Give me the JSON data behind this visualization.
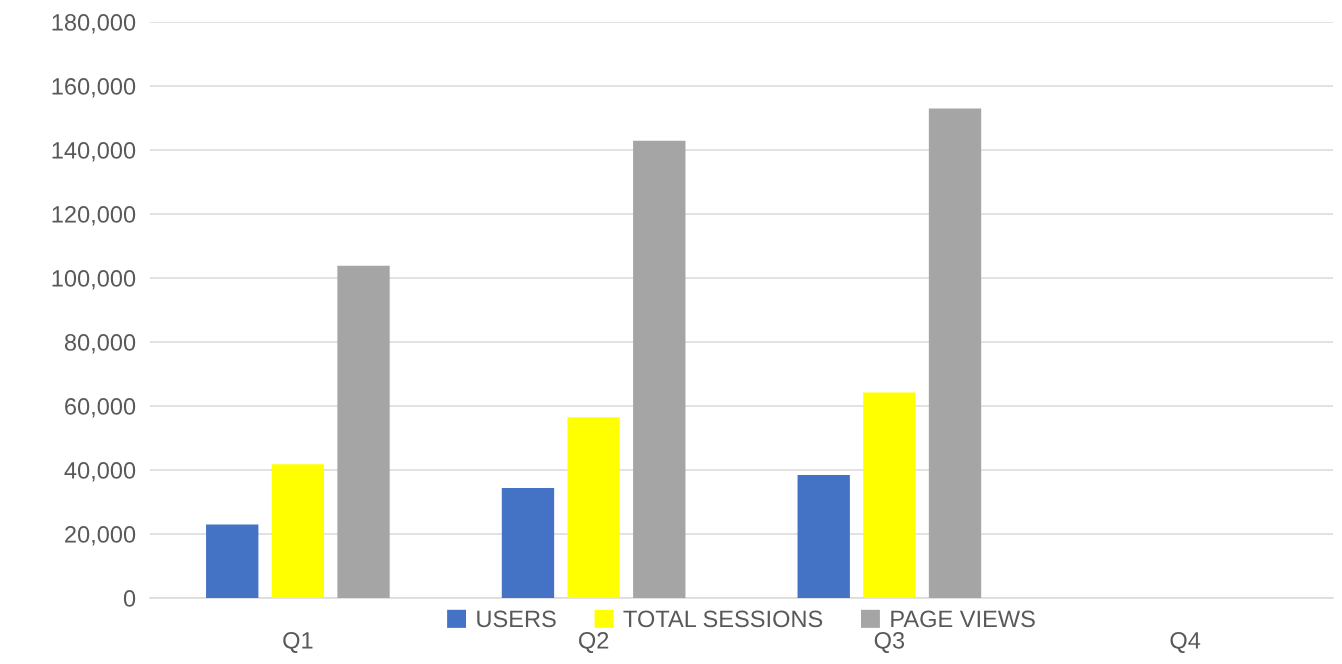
{
  "chart_data": {
    "type": "bar",
    "categories": [
      "Q1",
      "Q2",
      "Q3",
      "Q4"
    ],
    "series": [
      {
        "name": "USERS",
        "color": "#4472c4",
        "values": [
          23000,
          34400,
          38400,
          null
        ]
      },
      {
        "name": "TOTAL SESSIONS",
        "color": "#ffff00",
        "values": [
          41800,
          56500,
          64200,
          null
        ]
      },
      {
        "name": "PAGE VIEWS",
        "color": "#a5a5a5",
        "values": [
          103800,
          142900,
          153000,
          null
        ]
      }
    ],
    "ylim": [
      0,
      180000
    ],
    "yticks": [
      {
        "value": 0,
        "label": "0"
      },
      {
        "value": 20000,
        "label": "20,000"
      },
      {
        "value": 40000,
        "label": "40,000"
      },
      {
        "value": 60000,
        "label": "60,000"
      },
      {
        "value": 80000,
        "label": "80,000"
      },
      {
        "value": 100000,
        "label": "100,000"
      },
      {
        "value": 120000,
        "label": "120,000"
      },
      {
        "value": 140000,
        "label": "140,000"
      },
      {
        "value": 160000,
        "label": "160,000"
      },
      {
        "value": 180000,
        "label": "180,000"
      }
    ],
    "grid": "y",
    "legend": "bottom"
  }
}
